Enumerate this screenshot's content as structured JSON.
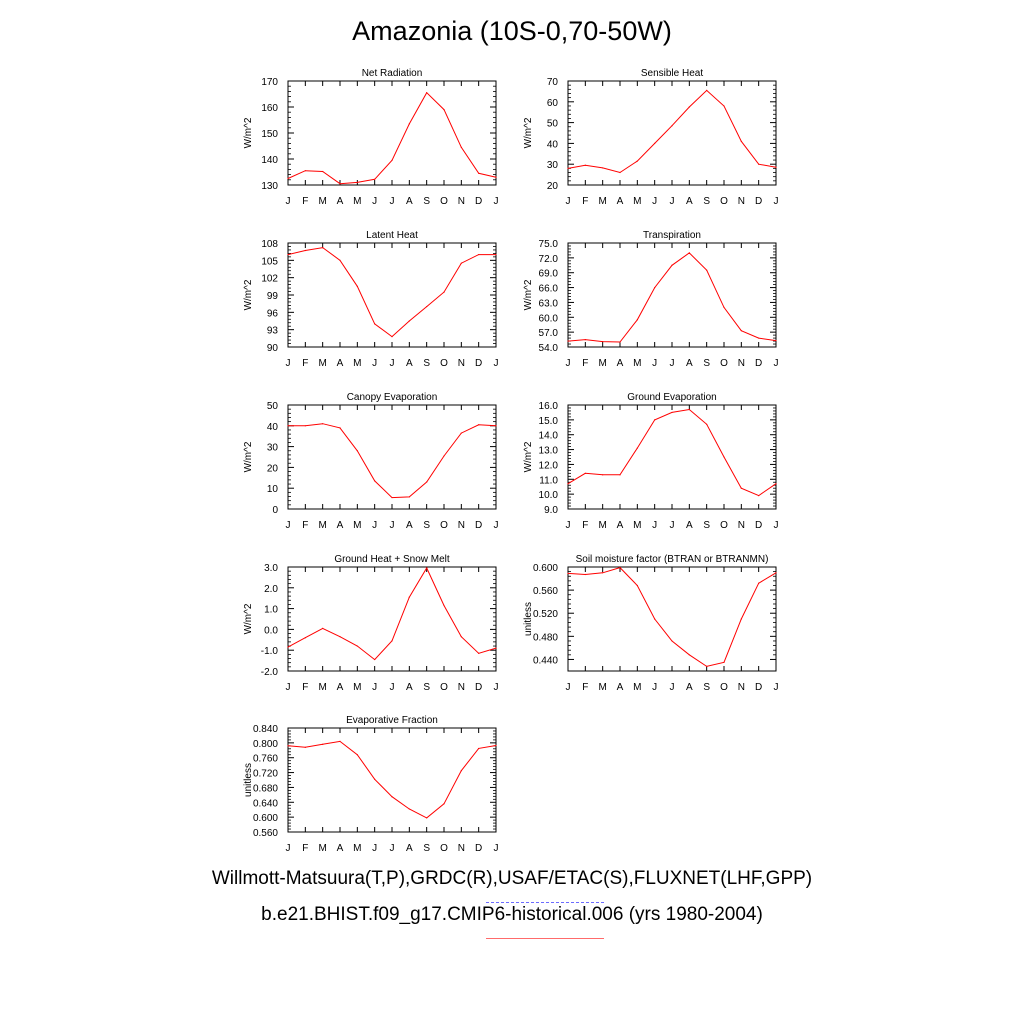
{
  "title": "Amazonia (10S-0,70-50W)",
  "legend": {
    "observations_label": "Willmott-Matsuura(T,P),GRDC(R),USAF/ETAC(S),FLUXNET(LHF,GPP)",
    "model_label": "b.e21.BHIST.f09_g17.CMIP6-historical.006 (yrs 1980-2004)",
    "observations_style": "dashed",
    "model_style": "solid"
  },
  "colors": {
    "series": "#ff0000",
    "observations": "#6b6bff",
    "model": "#ff6b6b",
    "axis": "#000000"
  },
  "chart_data": [
    {
      "type": "line",
      "title": "Net Radiation",
      "ylabel": "W/m^2",
      "categories": [
        "J",
        "F",
        "M",
        "A",
        "M",
        "J",
        "J",
        "A",
        "S",
        "O",
        "N",
        "D",
        "J"
      ],
      "ylim": [
        130,
        170
      ],
      "yticks": [
        130,
        140,
        150,
        160,
        170
      ],
      "ytick_labels": [
        "130",
        "140",
        "150",
        "160",
        "170"
      ],
      "values": [
        132.5,
        135.5,
        135.2,
        130.5,
        131.0,
        132.2,
        139.5,
        153.5,
        165.5,
        159.0,
        144.5,
        134.5,
        133.0
      ]
    },
    {
      "type": "line",
      "title": "Sensible Heat",
      "ylabel": "W/m^2",
      "categories": [
        "J",
        "F",
        "M",
        "A",
        "M",
        "J",
        "J",
        "A",
        "S",
        "O",
        "N",
        "D",
        "J"
      ],
      "ylim": [
        20,
        70
      ],
      "yticks": [
        20,
        30,
        40,
        50,
        60,
        70
      ],
      "ytick_labels": [
        "20",
        "30",
        "40",
        "50",
        "60",
        "70"
      ],
      "values": [
        28.0,
        29.5,
        28.2,
        26.0,
        31.5,
        40.0,
        48.5,
        57.5,
        65.5,
        58.0,
        41.0,
        30.0,
        28.5
      ]
    },
    {
      "type": "line",
      "title": "Latent Heat",
      "ylabel": "W/m^2",
      "categories": [
        "J",
        "F",
        "M",
        "A",
        "M",
        "J",
        "J",
        "A",
        "S",
        "O",
        "N",
        "D",
        "J"
      ],
      "ylim": [
        90,
        108
      ],
      "yticks": [
        90,
        93,
        96,
        99,
        102,
        105,
        108
      ],
      "ytick_labels": [
        "90",
        "93",
        "96",
        "99",
        "102",
        "105",
        "108"
      ],
      "values": [
        106.0,
        106.7,
        107.2,
        105.0,
        100.5,
        94.0,
        91.8,
        94.5,
        97.0,
        99.5,
        104.5,
        106.0,
        106.0
      ]
    },
    {
      "type": "line",
      "title": "Transpiration",
      "ylabel": "W/m^2",
      "categories": [
        "J",
        "F",
        "M",
        "A",
        "M",
        "J",
        "J",
        "A",
        "S",
        "O",
        "N",
        "D",
        "J"
      ],
      "ylim": [
        54,
        75
      ],
      "yticks": [
        54,
        57,
        60,
        63,
        66,
        69,
        72,
        75
      ],
      "ytick_labels": [
        "54.0",
        "57.0",
        "60.0",
        "63.0",
        "66.0",
        "69.0",
        "72.0",
        "75.0"
      ],
      "values": [
        55.2,
        55.5,
        55.1,
        55.0,
        59.5,
        66.0,
        70.5,
        73.0,
        69.5,
        62.0,
        57.3,
        55.8,
        55.3
      ]
    },
    {
      "type": "line",
      "title": "Canopy Evaporation",
      "ylabel": "W/m^2",
      "categories": [
        "J",
        "F",
        "M",
        "A",
        "M",
        "J",
        "J",
        "A",
        "S",
        "O",
        "N",
        "D",
        "J"
      ],
      "ylim": [
        0,
        50
      ],
      "yticks": [
        0,
        10,
        20,
        30,
        40,
        50
      ],
      "ytick_labels": [
        "0",
        "10",
        "20",
        "30",
        "40",
        "50"
      ],
      "values": [
        40.0,
        40.0,
        41.0,
        39.0,
        28.0,
        13.5,
        5.5,
        5.8,
        13.0,
        25.5,
        36.5,
        40.5,
        40.0
      ]
    },
    {
      "type": "line",
      "title": "Ground Evaporation",
      "ylabel": "W/m^2",
      "categories": [
        "J",
        "F",
        "M",
        "A",
        "M",
        "J",
        "J",
        "A",
        "S",
        "O",
        "N",
        "D",
        "J"
      ],
      "ylim": [
        9,
        16
      ],
      "yticks": [
        9,
        10,
        11,
        12,
        13,
        14,
        15,
        16
      ],
      "ytick_labels": [
        "9.0",
        "10.0",
        "11.0",
        "12.0",
        "13.0",
        "14.0",
        "15.0",
        "16.0"
      ],
      "values": [
        10.7,
        11.4,
        11.3,
        11.3,
        13.1,
        15.0,
        15.5,
        15.7,
        14.7,
        12.5,
        10.4,
        9.9,
        10.7
      ]
    },
    {
      "type": "line",
      "title": "Ground Heat + Snow Melt",
      "ylabel": "W/m^2",
      "categories": [
        "J",
        "F",
        "M",
        "A",
        "M",
        "J",
        "J",
        "A",
        "S",
        "O",
        "N",
        "D",
        "J"
      ],
      "ylim": [
        -2,
        3
      ],
      "yticks": [
        -2,
        -1,
        0,
        1,
        2,
        3
      ],
      "ytick_labels": [
        "-2.0",
        "-1.0",
        "0.0",
        "1.0",
        "2.0",
        "3.0"
      ],
      "values": [
        -0.85,
        -0.4,
        0.05,
        -0.35,
        -0.8,
        -1.45,
        -0.55,
        1.55,
        2.95,
        1.15,
        -0.35,
        -1.15,
        -0.9
      ]
    },
    {
      "type": "line",
      "title": "Soil moisture factor (BTRAN or BTRANMN)",
      "ylabel": "unitless",
      "categories": [
        "J",
        "F",
        "M",
        "A",
        "M",
        "J",
        "J",
        "A",
        "S",
        "O",
        "N",
        "D",
        "J"
      ],
      "ylim": [
        0.42,
        0.6
      ],
      "yticks": [
        0.44,
        0.48,
        0.52,
        0.56,
        0.6
      ],
      "ytick_labels": [
        "0.440",
        "0.480",
        "0.520",
        "0.560",
        "0.600"
      ],
      "values": [
        0.589,
        0.587,
        0.59,
        0.599,
        0.568,
        0.51,
        0.472,
        0.448,
        0.428,
        0.435,
        0.51,
        0.572,
        0.59
      ]
    },
    {
      "type": "line",
      "title": "Evaporative Fraction",
      "ylabel": "unitless",
      "categories": [
        "J",
        "F",
        "M",
        "A",
        "M",
        "J",
        "J",
        "A",
        "S",
        "O",
        "N",
        "D",
        "J"
      ],
      "ylim": [
        0.56,
        0.84
      ],
      "yticks": [
        0.56,
        0.6,
        0.64,
        0.68,
        0.72,
        0.76,
        0.8,
        0.84
      ],
      "ytick_labels": [
        "0.560",
        "0.600",
        "0.640",
        "0.680",
        "0.720",
        "0.760",
        "0.800",
        "0.840"
      ],
      "values": [
        0.792,
        0.788,
        0.796,
        0.804,
        0.768,
        0.702,
        0.655,
        0.622,
        0.598,
        0.636,
        0.725,
        0.785,
        0.793
      ]
    }
  ]
}
